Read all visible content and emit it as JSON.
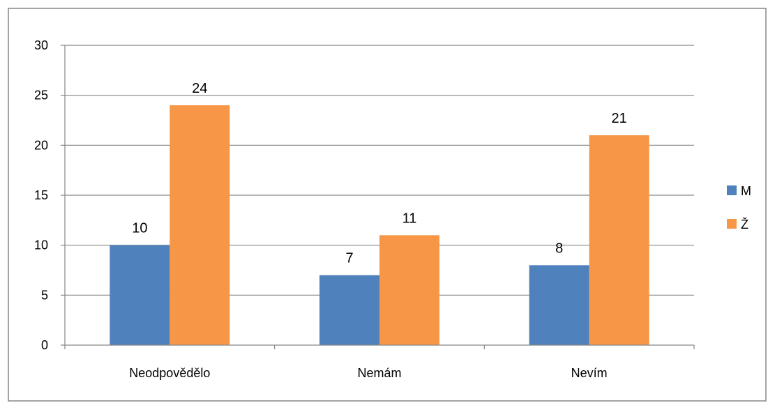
{
  "chart_data": {
    "type": "bar",
    "title": "",
    "xlabel": "",
    "ylabel": "",
    "categories": [
      "Neodpovědělo",
      "Nemám",
      "Nevím"
    ],
    "series": [
      {
        "name": "M",
        "values": [
          10,
          7,
          8
        ],
        "color": "#4f81bd"
      },
      {
        "name": "Ž",
        "values": [
          24,
          11,
          21
        ],
        "color": "#f79646"
      }
    ],
    "ylim": [
      0,
      30
    ],
    "yticks": [
      0,
      5,
      10,
      15,
      20,
      25,
      30
    ],
    "ytick_labels": [
      "0",
      "5",
      "10",
      "15",
      "20",
      "25",
      "30"
    ],
    "grid": true,
    "data_labels": true,
    "legend": "right"
  },
  "colors": {
    "gridline": "#868686",
    "axis": "#868686",
    "frame": "#868686"
  }
}
